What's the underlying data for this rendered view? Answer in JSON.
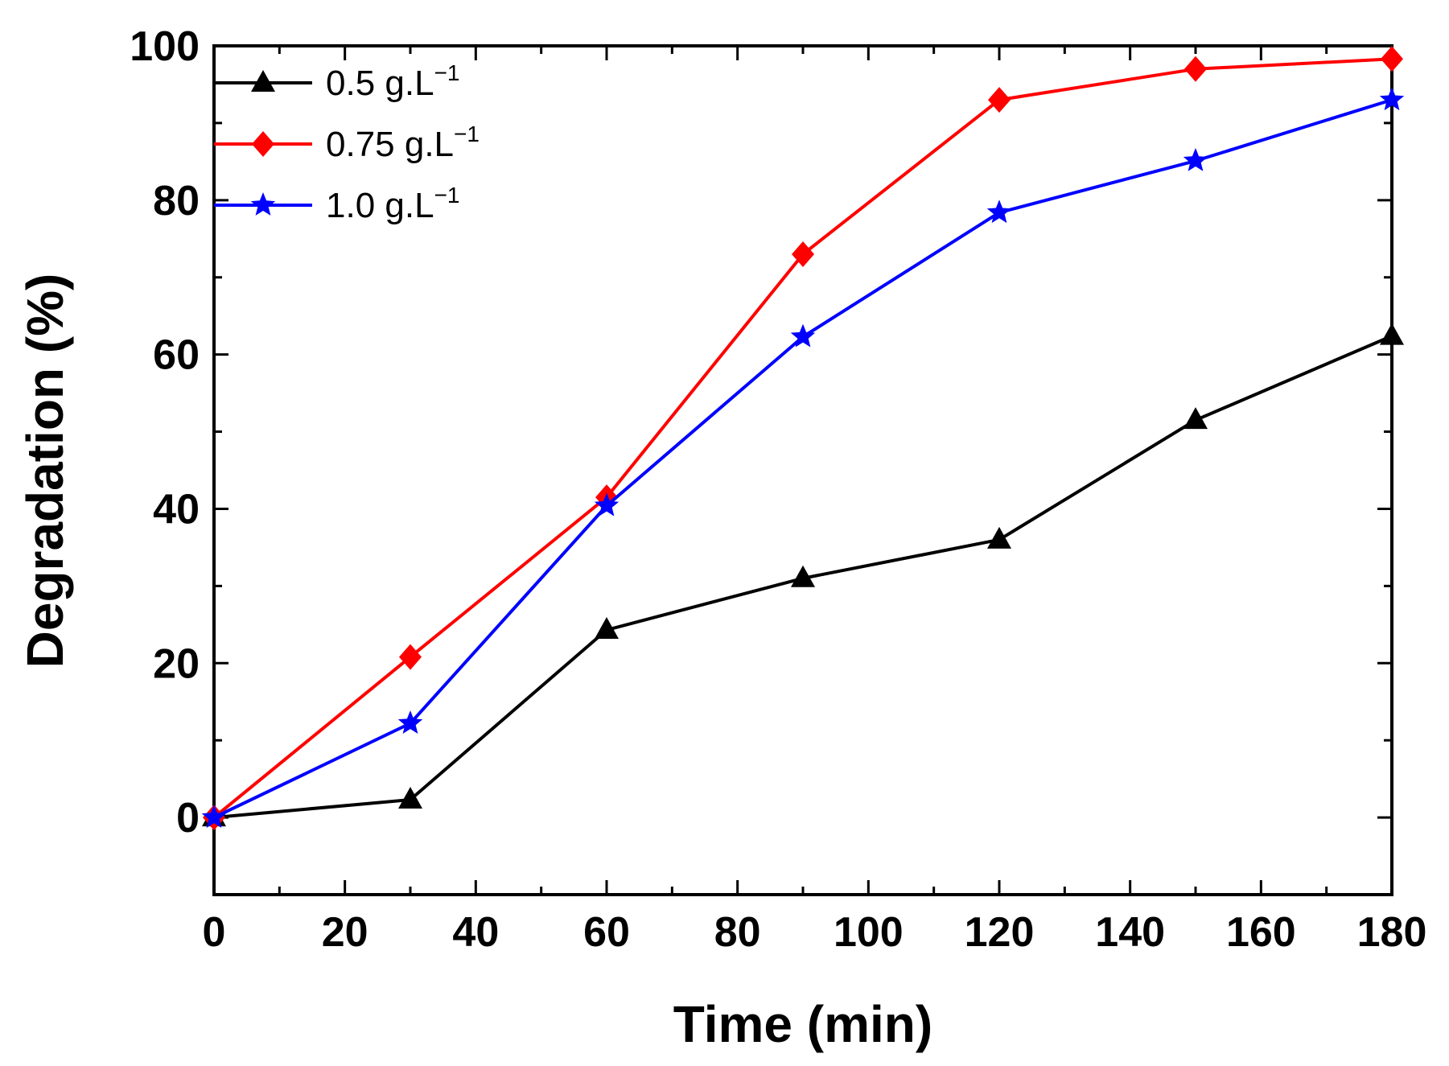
{
  "chart_data": {
    "type": "line",
    "title": "",
    "xlabel": "Time (min)",
    "ylabel": "Degradation (%)",
    "xlim": [
      0,
      180
    ],
    "ylim": [
      -10,
      100
    ],
    "xticks": [
      0,
      20,
      40,
      60,
      80,
      100,
      120,
      140,
      160,
      180
    ],
    "yticks": [
      0,
      20,
      40,
      60,
      80,
      100
    ],
    "x": [
      0,
      30,
      60,
      90,
      120,
      150,
      180
    ],
    "legend_position": "top-left",
    "grid": false,
    "series": [
      {
        "name": "0.5 g.L",
        "unit_exponent": "−1",
        "color": "#000000",
        "marker": "triangle",
        "values": [
          0,
          2.3,
          24.3,
          31.0,
          36.0,
          51.5,
          62.4
        ]
      },
      {
        "name": "0.75 g.L",
        "unit_exponent": "−1",
        "color": "#ff0000",
        "marker": "diamond",
        "values": [
          0,
          20.8,
          41.5,
          73.0,
          93.0,
          97.0,
          98.3
        ]
      },
      {
        "name": "1.0 g.L",
        "unit_exponent": "−1",
        "color": "#0000ff",
        "marker": "star",
        "values": [
          0,
          12.2,
          40.4,
          62.3,
          78.4,
          85.1,
          93.0
        ]
      }
    ]
  }
}
